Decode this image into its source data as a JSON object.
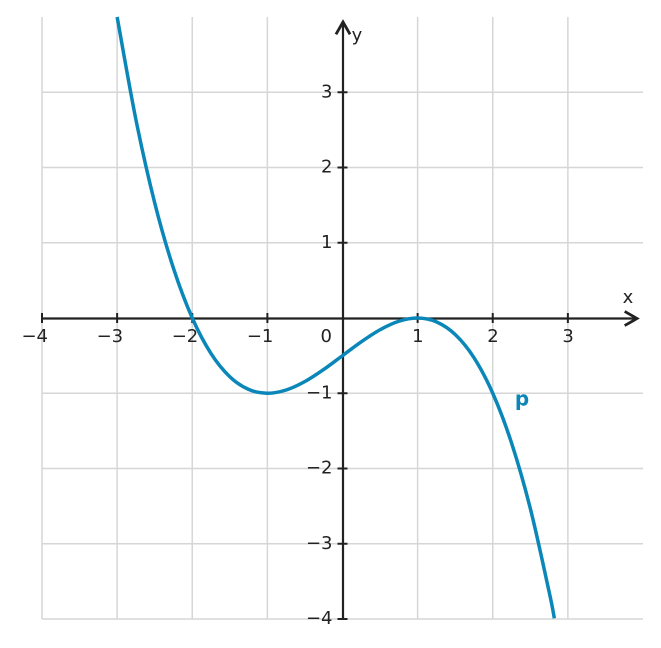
{
  "chart_data": {
    "type": "line",
    "x_label": "x",
    "y_label": "y",
    "origin_label": "0",
    "xlim": [
      -4,
      4
    ],
    "ylim": [
      -4,
      4
    ],
    "xticks": [
      {
        "value": -4,
        "label": "−4"
      },
      {
        "value": -3,
        "label": "−3"
      },
      {
        "value": -2,
        "label": "−2"
      },
      {
        "value": -1,
        "label": "−1"
      },
      1,
      2,
      3
    ],
    "yticks": [
      {
        "value": -4,
        "label": "−4"
      },
      {
        "value": -3,
        "label": "−3"
      },
      {
        "value": -2,
        "label": "−2"
      },
      {
        "value": -1,
        "label": "−1"
      },
      1,
      2,
      3
    ],
    "grid": true,
    "series": [
      {
        "name": "p",
        "color": "#0a87b8",
        "x": [
          -3,
          -2.75,
          -2.5,
          -2.25,
          -2,
          -1.75,
          -1.5,
          -1.25,
          -1,
          -0.75,
          -0.5,
          -0.25,
          0,
          0.25,
          0.5,
          0.75,
          1,
          1.25,
          1.5,
          1.75,
          2,
          2.25,
          2.5,
          2.75,
          2.82
        ],
        "values": [
          4,
          2.637,
          1.531,
          0.66,
          0,
          -0.473,
          -0.781,
          -0.949,
          -1,
          -0.957,
          -0.844,
          -0.684,
          -0.5,
          -0.316,
          -0.156,
          -0.043,
          0,
          -0.051,
          -0.219,
          -0.527,
          -1,
          -1.66,
          -2.531,
          -3.637,
          -3.991
        ]
      }
    ]
  }
}
